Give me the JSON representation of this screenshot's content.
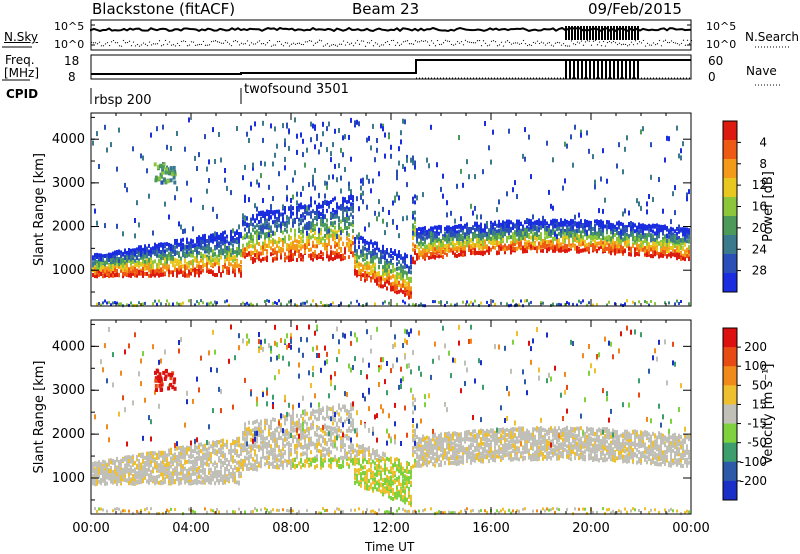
{
  "header": {
    "title": "Blackstone (fitACF)",
    "beam": "Beam 23",
    "date": "09/Feb/2015"
  },
  "noise_panel": {
    "left_label": "N.Sky",
    "right_label": "N.Search",
    "left_ticks": [
      "10^5",
      "10^0"
    ],
    "right_ticks": [
      "10^5",
      "10^0"
    ]
  },
  "freq_panel": {
    "left_label_1": "Freq.",
    "left_label_2": "[MHz]",
    "left_ticks": [
      "18",
      "8"
    ],
    "right_label": "Nave",
    "right_ticks": [
      "60",
      "0"
    ]
  },
  "cpid_panel": {
    "label": "CPID",
    "segments": [
      {
        "start_hour": 0,
        "name": "rbsp 200"
      },
      {
        "start_hour": 6,
        "name": "twofsound 3501"
      }
    ]
  },
  "chart_data": [
    {
      "type": "heatmap",
      "name": "power",
      "title": "",
      "ylabel": "Slant Range [km]",
      "xlabel": "Time UT",
      "xlim": [
        0,
        24
      ],
      "ylim": [
        180,
        4600
      ],
      "yticks": [
        "1000",
        "2000",
        "3000",
        "4000"
      ],
      "xticks": [
        "00:00",
        "04:00",
        "08:00",
        "12:00",
        "16:00",
        "20:00",
        "00:00"
      ],
      "colorbar": {
        "label": "Power [dB]",
        "ticks": [
          "4",
          "8",
          "12",
          "16",
          "20",
          "24",
          "28"
        ],
        "colors": [
          "#1a2ee0",
          "#2a4fb8",
          "#3a7a8c",
          "#4c9a5a",
          "#8cc63a",
          "#e8c820",
          "#f39a1a",
          "#ee5a14",
          "#dd1a10"
        ]
      }
    },
    {
      "type": "heatmap",
      "name": "velocity",
      "title": "",
      "ylabel": "Slant Range [km]",
      "xlabel": "Time UT",
      "xlim": [
        0,
        24
      ],
      "ylim": [
        180,
        4600
      ],
      "yticks": [
        "1000",
        "2000",
        "3000",
        "4000"
      ],
      "xticks": [
        "00:00",
        "04:00",
        "08:00",
        "12:00",
        "16:00",
        "20:00",
        "00:00"
      ],
      "colorbar": {
        "label": "Velocity [m s⁻¹]",
        "ticks": [
          "200",
          "100",
          "50",
          "15",
          "-15",
          "-50",
          "-100",
          "-200"
        ],
        "colors": [
          "#1a2ec8",
          "#2c5aa8",
          "#3c9e6c",
          "#7ed23e",
          "#c0c0b8",
          "#eec030",
          "#f08a1a",
          "#e84a14",
          "#dd1010"
        ]
      }
    }
  ],
  "xaxis_label": "Time UT"
}
